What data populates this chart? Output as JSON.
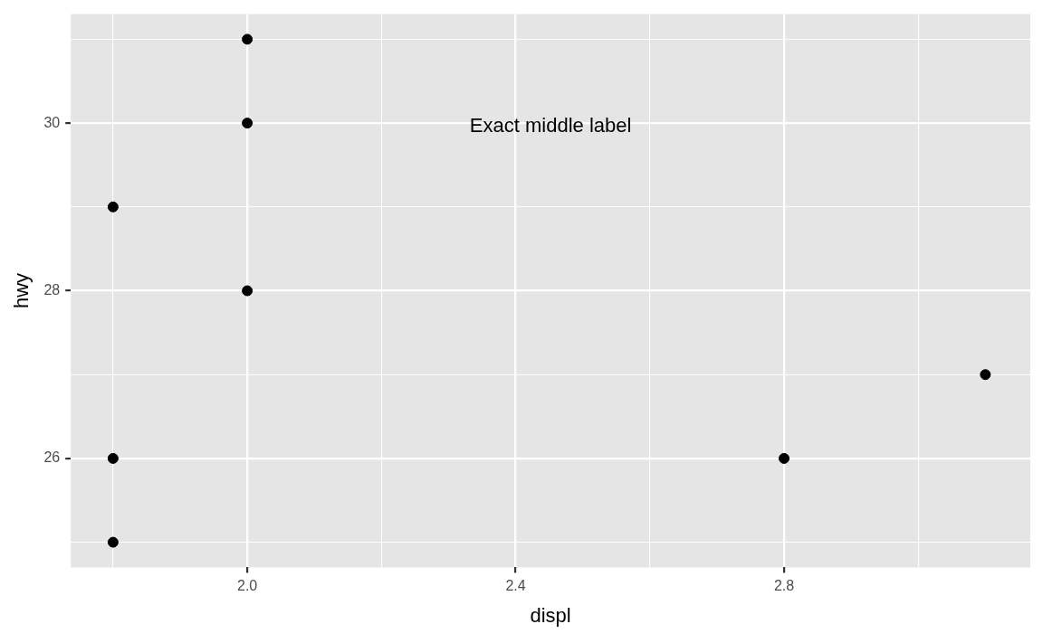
{
  "chart_data": {
    "type": "scatter",
    "xlabel": "displ",
    "ylabel": "hwy",
    "x": [
      1.8,
      1.8,
      1.8,
      2.0,
      2.0,
      2.0,
      2.8,
      3.1
    ],
    "values": [
      29,
      26,
      25,
      31,
      30,
      28,
      26,
      27
    ],
    "color": "#000000",
    "marker": "circle",
    "grid": true,
    "legend": false,
    "xlim": [
      1.737,
      3.167
    ],
    "ylim": [
      24.7,
      31.3
    ],
    "xticks": [
      {
        "value": 1.8,
        "label": null
      },
      {
        "value": 2.0,
        "label": "2.0"
      },
      {
        "value": 2.2,
        "label": null
      },
      {
        "value": 2.4,
        "label": "2.4"
      },
      {
        "value": 2.6,
        "label": null
      },
      {
        "value": 2.8,
        "label": "2.8"
      },
      {
        "value": 3.0,
        "label": null
      }
    ],
    "yticks": [
      {
        "value": 25,
        "label": null
      },
      26,
      {
        "value": 27,
        "label": null
      },
      28,
      {
        "value": 29,
        "label": null
      },
      30,
      {
        "value": 31,
        "label": null
      }
    ],
    "annotations": [
      "Exact middle label"
    ]
  }
}
